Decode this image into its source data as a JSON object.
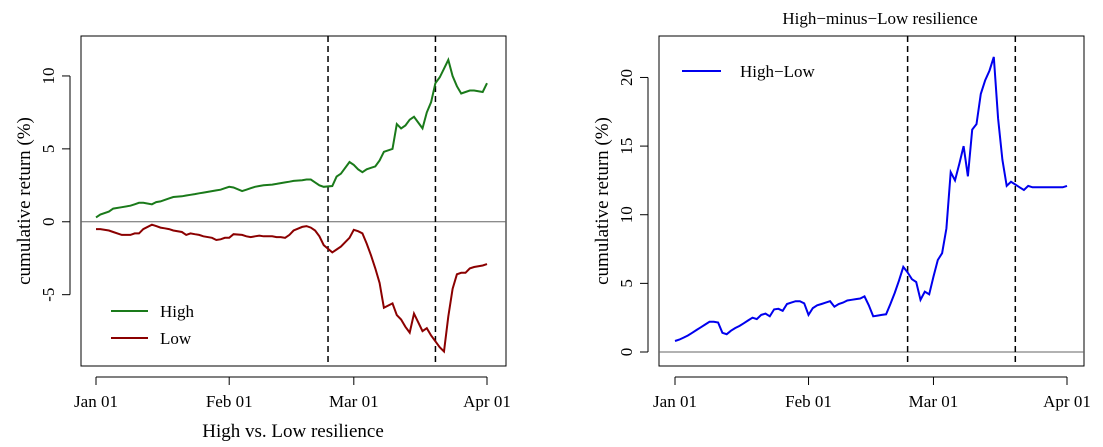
{
  "chart_data": [
    {
      "type": "line",
      "title": "",
      "xlabel": "High vs. Low resilience",
      "ylabel": "cumulative return (%)",
      "x_ticks": [
        "Jan 01",
        "Feb 01",
        "Mar 01",
        "Apr 01"
      ],
      "x_tick_days": [
        0,
        31,
        60,
        91
      ],
      "y_ticks": [
        -5,
        0,
        5,
        10
      ],
      "xlim": [
        0,
        91
      ],
      "ylim": [
        -9.0,
        11.3
      ],
      "hline": 0,
      "vlines": [
        54,
        79
      ],
      "legend_position": "bottom-left",
      "series": [
        {
          "name": "High",
          "color": "#1a7a1a",
          "x": [
            0,
            1,
            3,
            4,
            6,
            8,
            9,
            10,
            11,
            13,
            14,
            15,
            16,
            17,
            18,
            20,
            21,
            22,
            23,
            24,
            25,
            27,
            28,
            29,
            30,
            31,
            32,
            34,
            35,
            36,
            37,
            38,
            39,
            41,
            42,
            43,
            44,
            45,
            46,
            48,
            49,
            50,
            51,
            52,
            53,
            55,
            56,
            57,
            59,
            60,
            61,
            62,
            63,
            64,
            65,
            66,
            67,
            69,
            70,
            71,
            72,
            73,
            74,
            76,
            77,
            78,
            79,
            80,
            81,
            82,
            83,
            84,
            85,
            86,
            87,
            88,
            90,
            91
          ],
          "y": [
            0.3,
            0.5,
            0.7,
            0.9,
            1.0,
            1.1,
            1.2,
            1.3,
            1.3,
            1.2,
            1.35,
            1.4,
            1.5,
            1.6,
            1.7,
            1.75,
            1.8,
            1.85,
            1.9,
            1.95,
            2.0,
            2.1,
            2.15,
            2.2,
            2.3,
            2.4,
            2.35,
            2.1,
            2.2,
            2.3,
            2.4,
            2.45,
            2.5,
            2.55,
            2.6,
            2.65,
            2.7,
            2.75,
            2.8,
            2.85,
            2.9,
            2.9,
            2.7,
            2.5,
            2.4,
            2.45,
            3.1,
            3.3,
            4.1,
            3.9,
            3.6,
            3.4,
            3.6,
            3.7,
            3.8,
            4.2,
            4.8,
            5.0,
            6.7,
            6.4,
            6.6,
            7.0,
            7.2,
            6.4,
            7.5,
            8.2,
            9.5,
            9.9,
            10.5,
            11.1,
            10.0,
            9.3,
            8.8,
            8.9,
            9.0,
            9.0,
            8.9,
            9.5
          ]
        },
        {
          "name": "Low",
          "color": "#8b0000",
          "x": [
            0,
            1,
            3,
            4,
            6,
            8,
            9,
            10,
            11,
            13,
            14,
            15,
            16,
            17,
            18,
            20,
            21,
            22,
            23,
            24,
            25,
            27,
            28,
            29,
            30,
            31,
            32,
            34,
            35,
            36,
            37,
            38,
            39,
            41,
            42,
            43,
            44,
            45,
            46,
            48,
            49,
            50,
            51,
            52,
            53,
            55,
            56,
            57,
            59,
            60,
            61,
            62,
            63,
            64,
            65,
            66,
            67,
            69,
            70,
            71,
            72,
            73,
            74,
            76,
            77,
            78,
            79,
            80,
            81,
            82,
            83,
            84,
            85,
            86,
            87,
            88,
            90,
            91
          ],
          "y": [
            -0.5,
            -0.5,
            -0.6,
            -0.7,
            -0.9,
            -0.9,
            -0.8,
            -0.8,
            -0.5,
            -0.2,
            -0.3,
            -0.4,
            -0.45,
            -0.5,
            -0.6,
            -0.7,
            -0.9,
            -0.8,
            -0.85,
            -0.9,
            -1.0,
            -1.1,
            -1.25,
            -1.2,
            -1.1,
            -1.1,
            -0.85,
            -0.9,
            -1.0,
            -1.05,
            -1.0,
            -0.95,
            -1.0,
            -1.0,
            -1.05,
            -1.05,
            -1.1,
            -0.9,
            -0.6,
            -0.35,
            -0.3,
            -0.4,
            -0.6,
            -1.0,
            -1.6,
            -2.1,
            -1.9,
            -1.7,
            -1.1,
            -0.55,
            -0.65,
            -0.8,
            -1.5,
            -2.3,
            -3.2,
            -4.2,
            -5.9,
            -5.6,
            -6.4,
            -6.7,
            -7.2,
            -7.6,
            -6.3,
            -7.5,
            -7.3,
            -7.8,
            -8.2,
            -8.6,
            -8.9,
            -6.5,
            -4.6,
            -3.6,
            -3.5,
            -3.5,
            -3.2,
            -3.1,
            -3.0,
            -2.9
          ]
        }
      ]
    },
    {
      "type": "line",
      "title": "High−minus−Low resilience",
      "xlabel": "",
      "ylabel": "cumulative return (%)",
      "x_ticks": [
        "Jan 01",
        "Feb 01",
        "Mar 01",
        "Apr 01"
      ],
      "x_tick_days": [
        0,
        31,
        60,
        91
      ],
      "y_ticks": [
        0,
        5,
        10,
        15,
        20
      ],
      "xlim": [
        0,
        91
      ],
      "ylim": [
        0,
        22
      ],
      "hline": 0,
      "vlines": [
        54,
        79
      ],
      "legend_position": "top-left",
      "series": [
        {
          "name": "High−Low",
          "color": "#0000ee",
          "x": [
            0,
            1,
            2,
            3,
            4,
            5,
            6,
            7,
            8,
            9,
            10,
            11,
            12,
            13,
            14,
            15,
            16,
            17,
            18,
            19,
            20,
            21,
            22,
            23,
            24,
            25,
            26,
            27,
            28,
            29,
            30,
            31,
            32,
            33,
            34,
            35,
            36,
            37,
            38,
            39,
            40,
            41,
            42,
            43,
            44,
            45,
            46,
            47,
            48,
            49,
            50,
            51,
            52,
            53,
            54,
            55,
            56,
            57,
            58,
            59,
            60,
            61,
            62,
            63,
            64,
            65,
            66,
            67,
            68,
            69,
            70,
            71,
            72,
            73,
            74,
            75,
            76,
            77,
            78,
            79,
            80,
            81,
            82,
            83,
            84,
            85,
            86,
            87,
            88,
            89,
            90,
            91
          ],
          "y": [
            0.8,
            0.9,
            1.05,
            1.2,
            1.4,
            1.6,
            1.8,
            2.0,
            2.2,
            2.2,
            2.15,
            1.4,
            1.3,
            1.55,
            1.75,
            1.9,
            2.1,
            2.3,
            2.5,
            2.4,
            2.7,
            2.8,
            2.6,
            3.1,
            3.15,
            3.0,
            3.5,
            3.6,
            3.7,
            3.7,
            3.55,
            2.7,
            3.2,
            3.4,
            3.5,
            3.6,
            3.7,
            3.3,
            3.5,
            3.6,
            3.75,
            3.8,
            3.85,
            3.9,
            4.05,
            3.4,
            2.6,
            2.65,
            2.7,
            2.75,
            3.5,
            4.3,
            5.2,
            6.2,
            5.8,
            5.3,
            5.1,
            3.8,
            4.4,
            4.2,
            5.5,
            6.7,
            7.2,
            9.0,
            13.1,
            12.5,
            13.7,
            15.0,
            12.8,
            16.2,
            16.6,
            18.8,
            19.8,
            20.5,
            21.5,
            17.0,
            14.0,
            12.1,
            12.4,
            12.2,
            12.0,
            11.8,
            12.1,
            12.0,
            12.0,
            12.0,
            12.0,
            12.0,
            12.0,
            12.0,
            12.0,
            12.1
          ]
        }
      ]
    }
  ]
}
